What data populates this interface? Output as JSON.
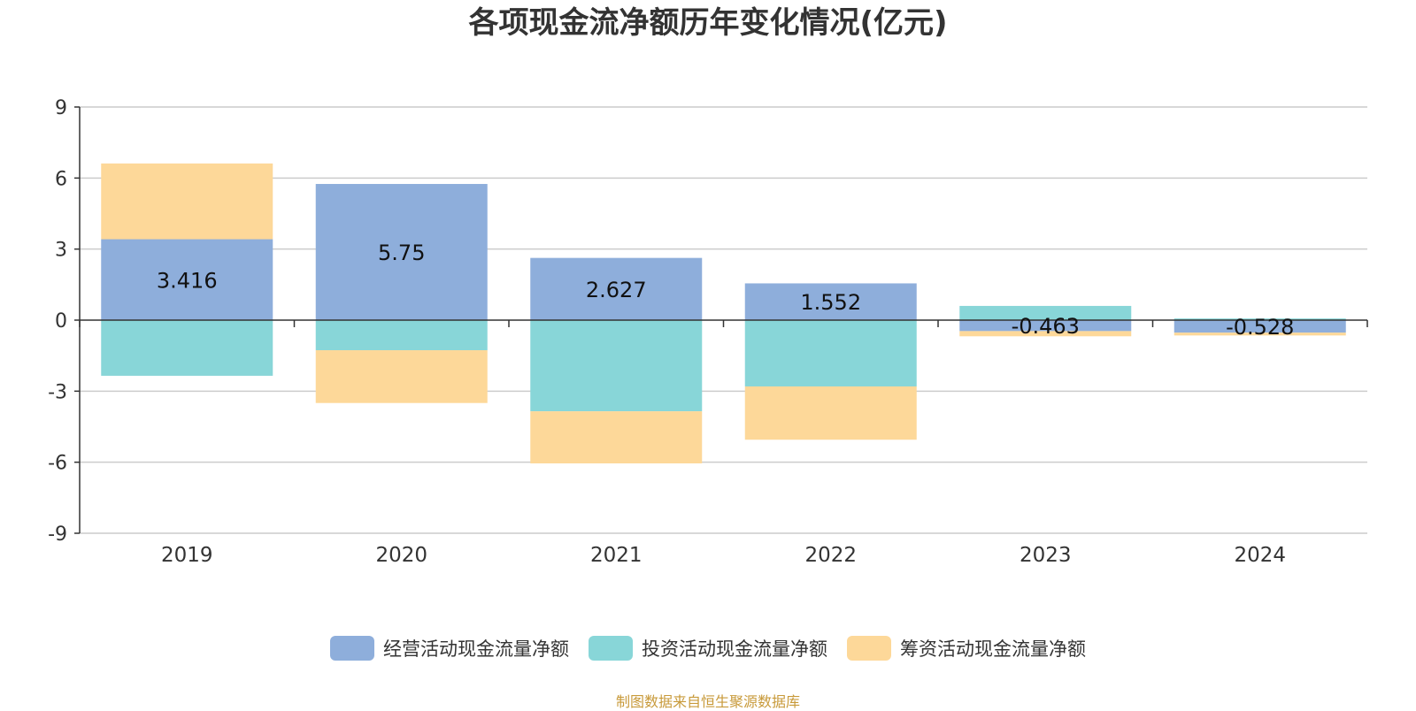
{
  "chart_data": {
    "type": "bar",
    "stacked": true,
    "title": "各项现金流净额历年变化情况(亿元)",
    "categories": [
      "2019",
      "2020",
      "2021",
      "2022",
      "2023",
      "2024"
    ],
    "ylim": [
      -9,
      9
    ],
    "yticks": [
      9,
      6,
      3,
      0,
      -3,
      -6,
      -9
    ],
    "grid": true,
    "legend_position": "bottom",
    "series": [
      {
        "name": "经营活动现金流量净额",
        "color": "#8eaedb",
        "values": [
          3.416,
          5.75,
          2.627,
          1.552,
          -0.463,
          -0.528
        ],
        "labels": [
          "3.416",
          "5.75",
          "2.627",
          "1.552",
          "-0.463",
          "-0.528"
        ]
      },
      {
        "name": "投资活动现金流量净额",
        "color": "#88d6d8",
        "values": [
          -2.35,
          -1.27,
          -3.85,
          -2.8,
          0.6,
          0.07
        ]
      },
      {
        "name": "筹资活动现金流量净额",
        "color": "#fdd899",
        "values": [
          3.2,
          -2.23,
          -2.2,
          -2.25,
          -0.22,
          -0.12
        ]
      }
    ]
  },
  "source": "制图数据来自恒生聚源数据库",
  "source_color": "#c89a3a"
}
